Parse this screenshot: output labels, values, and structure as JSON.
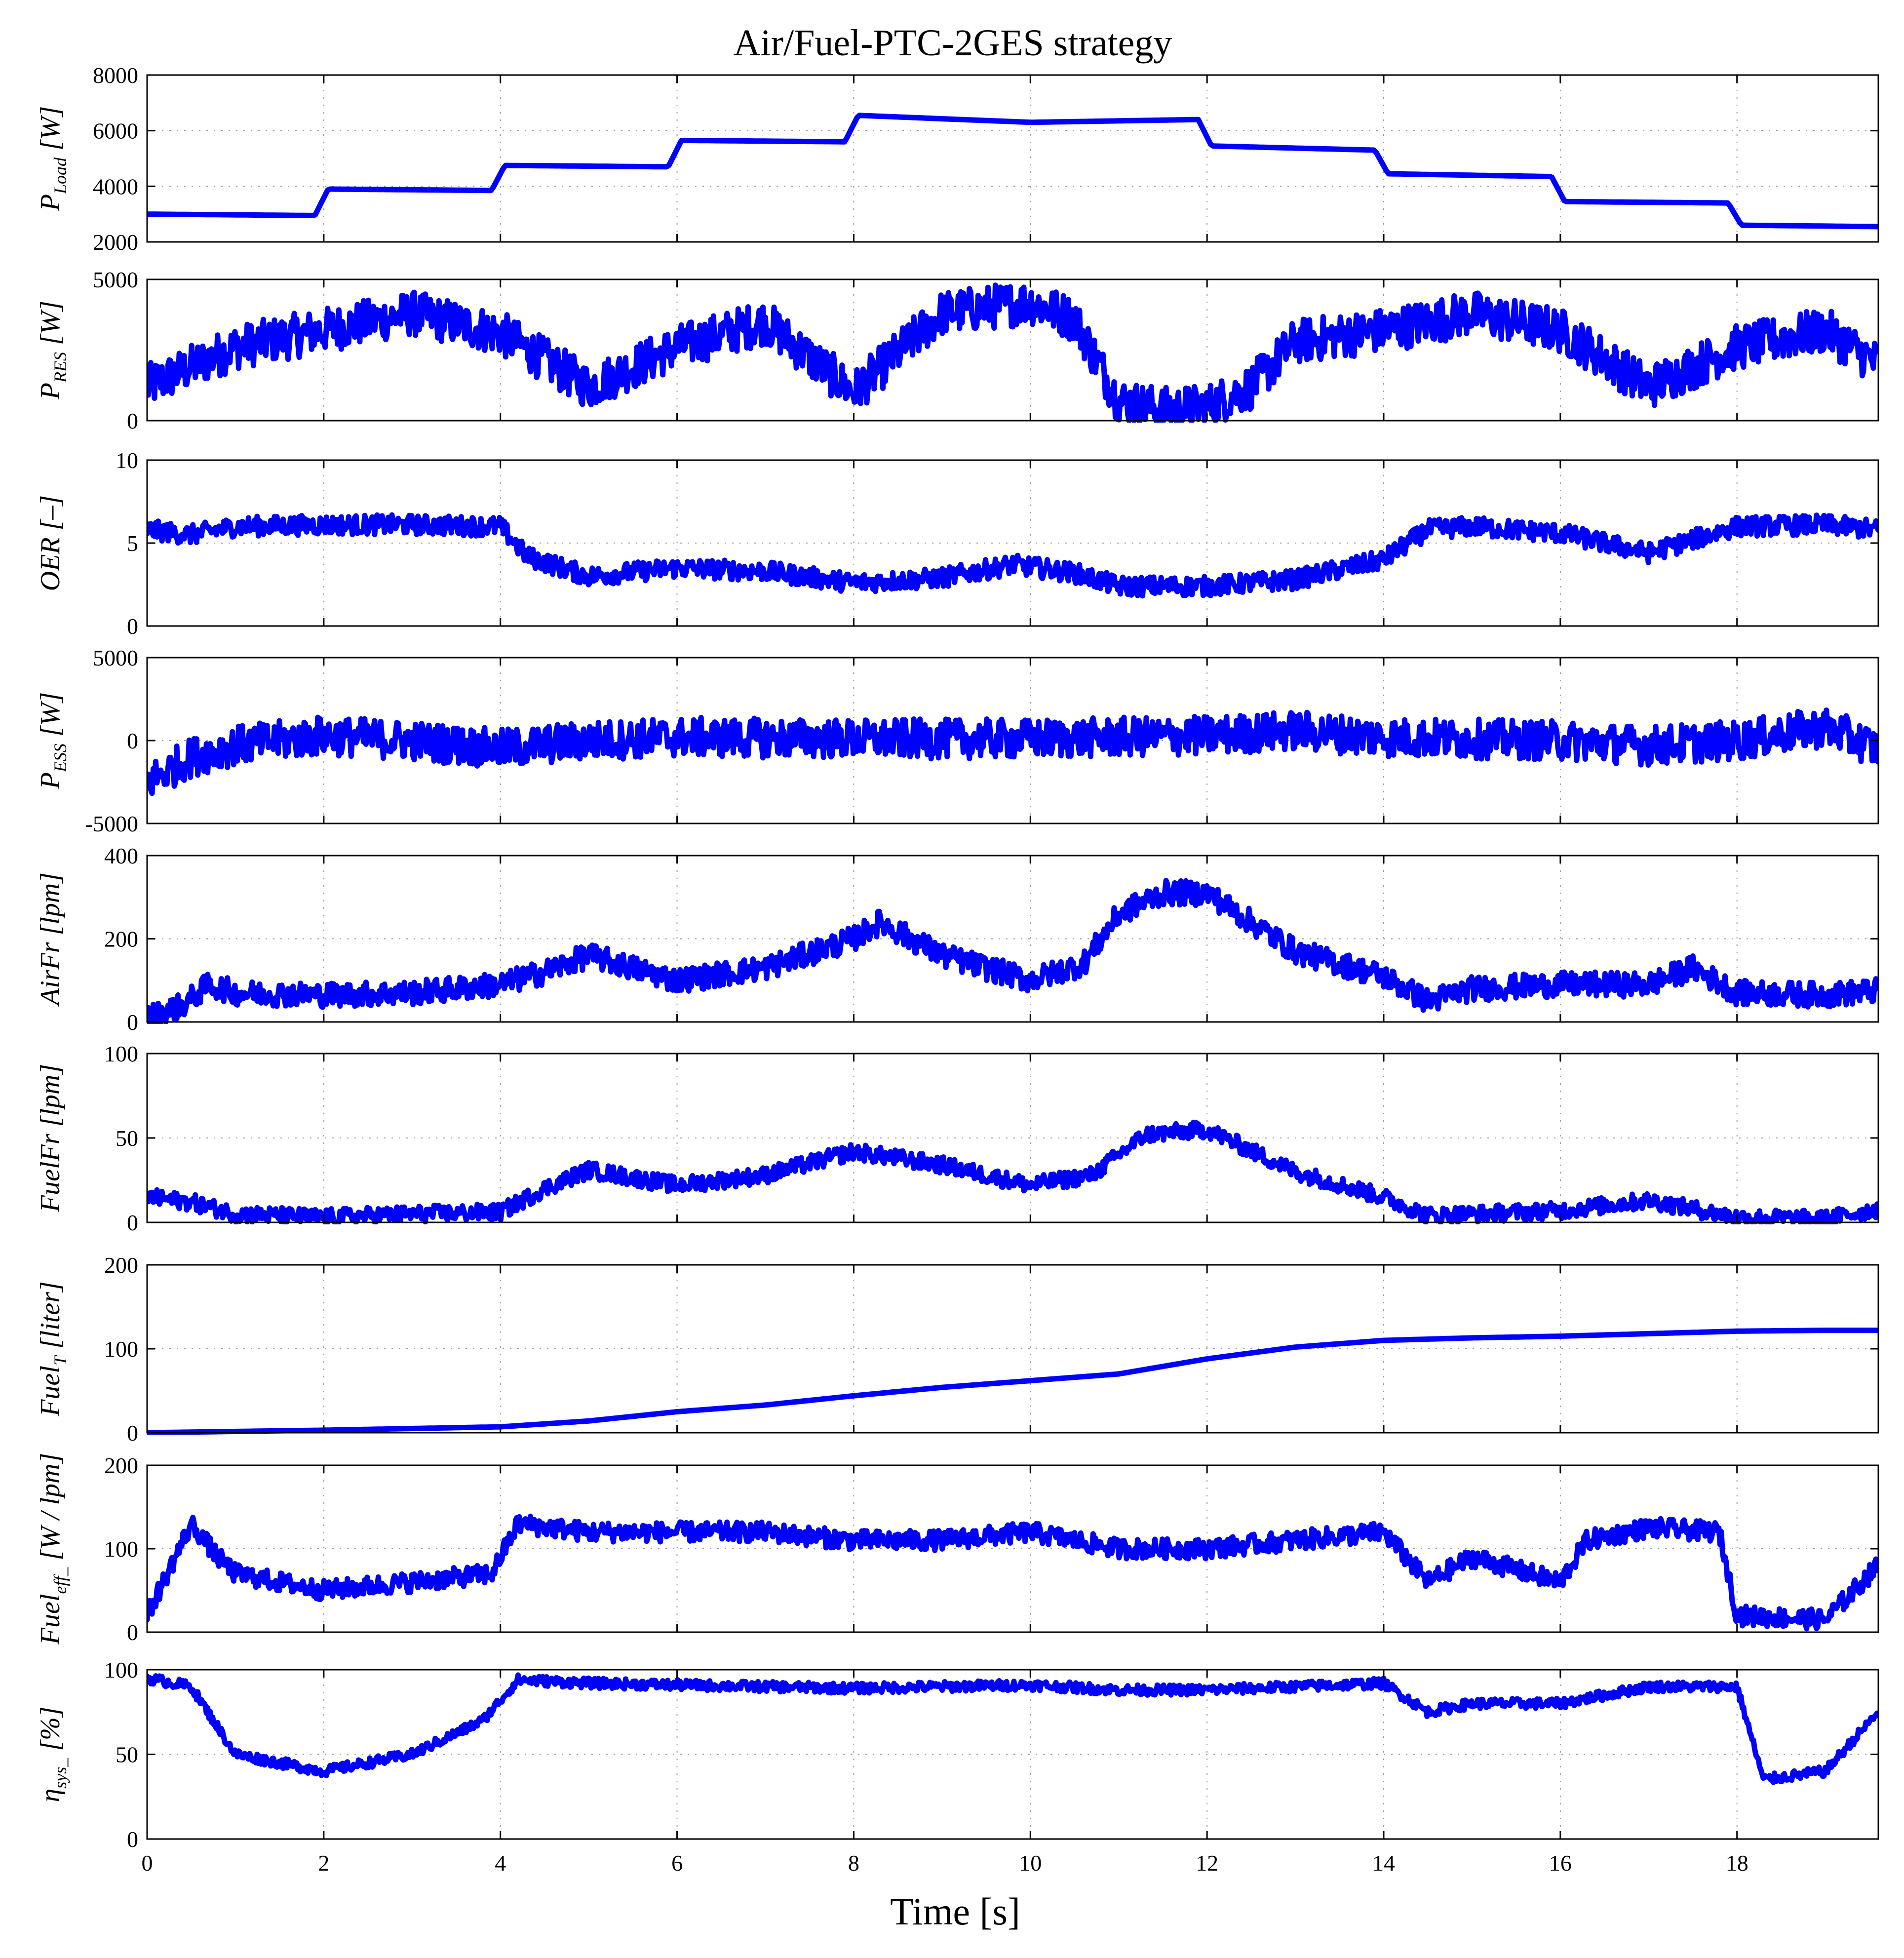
{
  "chart_data": {
    "type": "line",
    "title": "Air/Fuel-PTC-2GES strategy",
    "xlabel": "Time [s]",
    "xlim": [
      0,
      19.6
    ],
    "xticks": [
      0,
      2,
      4,
      6,
      8,
      10,
      12,
      14,
      16,
      18
    ],
    "line_color": "#0000ff",
    "grid": true,
    "subplots": [
      {
        "id": "pload",
        "ylabel": "P_Load [W]",
        "ylabel_main": "P",
        "ylabel_sub": "Load",
        "ylabel_unit": "[W]",
        "ylim": [
          2000,
          8000
        ],
        "yticks": [
          2000,
          4000,
          6000,
          8000
        ],
        "noise": 0,
        "x": [
          0,
          1.9,
          2.05,
          3.9,
          4.05,
          5.9,
          6.05,
          7.9,
          8.05,
          10.0,
          11.9,
          12.05,
          13.9,
          14.05,
          15.9,
          16.05,
          17.9,
          18.05,
          19.6
        ],
        "y": [
          3000,
          2950,
          3900,
          3850,
          4750,
          4700,
          5650,
          5600,
          6550,
          6300,
          6400,
          5450,
          5300,
          4450,
          4350,
          3450,
          3400,
          2600,
          2550
        ]
      },
      {
        "id": "pres",
        "ylabel": "P_RES [W]",
        "ylabel_main": "P",
        "ylabel_sub": "RES",
        "ylabel_unit": "[W]",
        "ylim": [
          0,
          5000
        ],
        "yticks": [
          0,
          5000
        ],
        "noise": 800,
        "x": [
          0,
          1,
          2,
          3,
          4,
          5,
          6,
          7,
          8,
          9,
          10,
          10.5,
          11,
          11.5,
          12,
          12.5,
          13,
          14,
          15,
          16,
          17,
          18,
          19,
          19.6
        ],
        "y": [
          1200,
          2600,
          3200,
          3800,
          3100,
          1200,
          2600,
          3500,
          1000,
          3800,
          4200,
          3600,
          700,
          400,
          500,
          1200,
          2800,
          3200,
          3800,
          3200,
          1200,
          2600,
          3200,
          2000
        ]
      },
      {
        "id": "oer",
        "ylabel": "OER [–]",
        "ylabel_main": "OER",
        "ylabel_sub": "",
        "ylabel_unit": "[–]",
        "ylim": [
          0,
          10
        ],
        "yticks": [
          0,
          5,
          10
        ],
        "noise": 0.6,
        "x": [
          0,
          0.5,
          1,
          2,
          3,
          4,
          4.3,
          5,
          6,
          7,
          8,
          9,
          9.8,
          10.5,
          11,
          12,
          13,
          14,
          14.5,
          15,
          16,
          17,
          18,
          19,
          19.6
        ],
        "y": [
          5.8,
          5.5,
          6.0,
          6.1,
          6.1,
          6.0,
          4.2,
          3.0,
          3.5,
          3.3,
          2.6,
          2.9,
          3.7,
          3.2,
          2.4,
          2.4,
          2.8,
          4.0,
          5.8,
          6.0,
          5.6,
          4.4,
          6.0,
          6.1,
          5.8
        ]
      },
      {
        "id": "pess",
        "ylabel": "P_ESS [W]",
        "ylabel_main": "P",
        "ylabel_sub": "ESS",
        "ylabel_unit": "[W]",
        "ylim": [
          -5000,
          5000
        ],
        "yticks": [
          -5000,
          0,
          5000
        ],
        "noise": 1200,
        "x": [
          0,
          0.5,
          1,
          2,
          3,
          4,
          5,
          6,
          8,
          10,
          12,
          13,
          14,
          16,
          17,
          18,
          19,
          19.6
        ],
        "y": [
          -2500,
          -1000,
          -300,
          300,
          0,
          -500,
          0,
          200,
          100,
          100,
          300,
          600,
          200,
          0,
          -300,
          0,
          800,
          -500
        ]
      },
      {
        "id": "airfr",
        "ylabel": "AirFr [lpm]",
        "ylabel_main": "AirFr",
        "ylabel_sub": "",
        "ylabel_unit": "[lpm]",
        "ylim": [
          0,
          400
        ],
        "yticks": [
          0,
          200,
          400
        ],
        "noise": 30,
        "x": [
          0,
          0.4,
          0.7,
          1,
          2,
          3,
          4,
          4.5,
          5,
          6,
          7,
          8,
          8.3,
          9,
          10,
          10.6,
          11,
          11.5,
          12,
          13,
          14,
          14.5,
          15,
          16,
          17,
          17.5,
          18,
          19,
          19.6
        ],
        "y": [
          10,
          40,
          90,
          70,
          65,
          70,
          90,
          120,
          160,
          100,
          130,
          200,
          240,
          160,
          100,
          140,
          260,
          310,
          310,
          170,
          110,
          50,
          80,
          90,
          90,
          130,
          70,
          65,
          75
        ]
      },
      {
        "id": "fuelfr",
        "ylabel": "FuelFr [lpm]",
        "ylabel_main": "FuelFr",
        "ylabel_sub": "",
        "ylabel_unit": "[lpm]",
        "ylim": [
          0,
          100
        ],
        "yticks": [
          0,
          50,
          100
        ],
        "noise": 5,
        "x": [
          0,
          0.5,
          1,
          2,
          3,
          4,
          4.5,
          5,
          6,
          7,
          8,
          9,
          10,
          10.7,
          11.3,
          12,
          13,
          14,
          14.5,
          16,
          17,
          18,
          19,
          19.6
        ],
        "y": [
          15,
          12,
          5,
          3,
          5,
          6,
          20,
          31,
          22,
          28,
          42,
          34,
          22,
          28,
          52,
          55,
          30,
          15,
          4,
          7,
          13,
          3,
          2,
          8
        ]
      },
      {
        "id": "fuelt",
        "ylabel": "Fuel_T [liter]",
        "ylabel_main": "Fuel",
        "ylabel_sub": "T",
        "ylabel_unit": "[liter]",
        "ylim": [
          0,
          200
        ],
        "yticks": [
          0,
          100,
          200
        ],
        "noise": 0,
        "x": [
          0,
          2,
          4,
          5,
          6,
          7,
          8,
          9,
          10,
          11,
          12,
          13,
          14,
          15,
          16,
          17,
          18,
          19,
          19.6
        ],
        "y": [
          0,
          3,
          7,
          14,
          25,
          33,
          44,
          54,
          62,
          70,
          88,
          102,
          110,
          113,
          115,
          118,
          121,
          122,
          122
        ]
      },
      {
        "id": "fueleff",
        "ylabel": "Fuel_eff_ [W / lpm]",
        "ylabel_main": "Fuel",
        "ylabel_sub": "eff_",
        "ylabel_unit": "[W / lpm]",
        "ylim": [
          0,
          200
        ],
        "yticks": [
          0,
          100,
          200
        ],
        "noise": 12,
        "x": [
          0,
          0.5,
          0.8,
          1,
          2,
          3,
          3.9,
          4.2,
          5,
          6,
          7,
          8,
          9,
          10,
          11,
          12,
          13,
          14,
          14.5,
          15,
          16,
          16.3,
          17,
          17.8,
          18,
          19,
          19.6
        ],
        "y": [
          20,
          130,
          90,
          70,
          50,
          60,
          70,
          130,
          120,
          120,
          120,
          110,
          110,
          120,
          100,
          100,
          110,
          120,
          60,
          90,
          60,
          110,
          125,
          120,
          20,
          15,
          80
        ]
      },
      {
        "id": "etasys",
        "ylabel": "η_sys_ [%]",
        "ylabel_main": "η",
        "ylabel_sub": "sys_",
        "ylabel_unit": "[%]",
        "ylim": [
          0,
          100
        ],
        "yticks": [
          0,
          50,
          100
        ],
        "noise": 3,
        "x": [
          0,
          0.5,
          1,
          2,
          3,
          3.8,
          4.2,
          5,
          6,
          8,
          10,
          11,
          12,
          14,
          14.5,
          15,
          16,
          17,
          18,
          18.3,
          19,
          19.6
        ],
        "y": [
          95,
          90,
          50,
          40,
          50,
          70,
          94,
          92,
          91,
          89,
          91,
          88,
          88,
          92,
          75,
          80,
          80,
          90,
          90,
          35,
          40,
          75
        ]
      }
    ]
  }
}
